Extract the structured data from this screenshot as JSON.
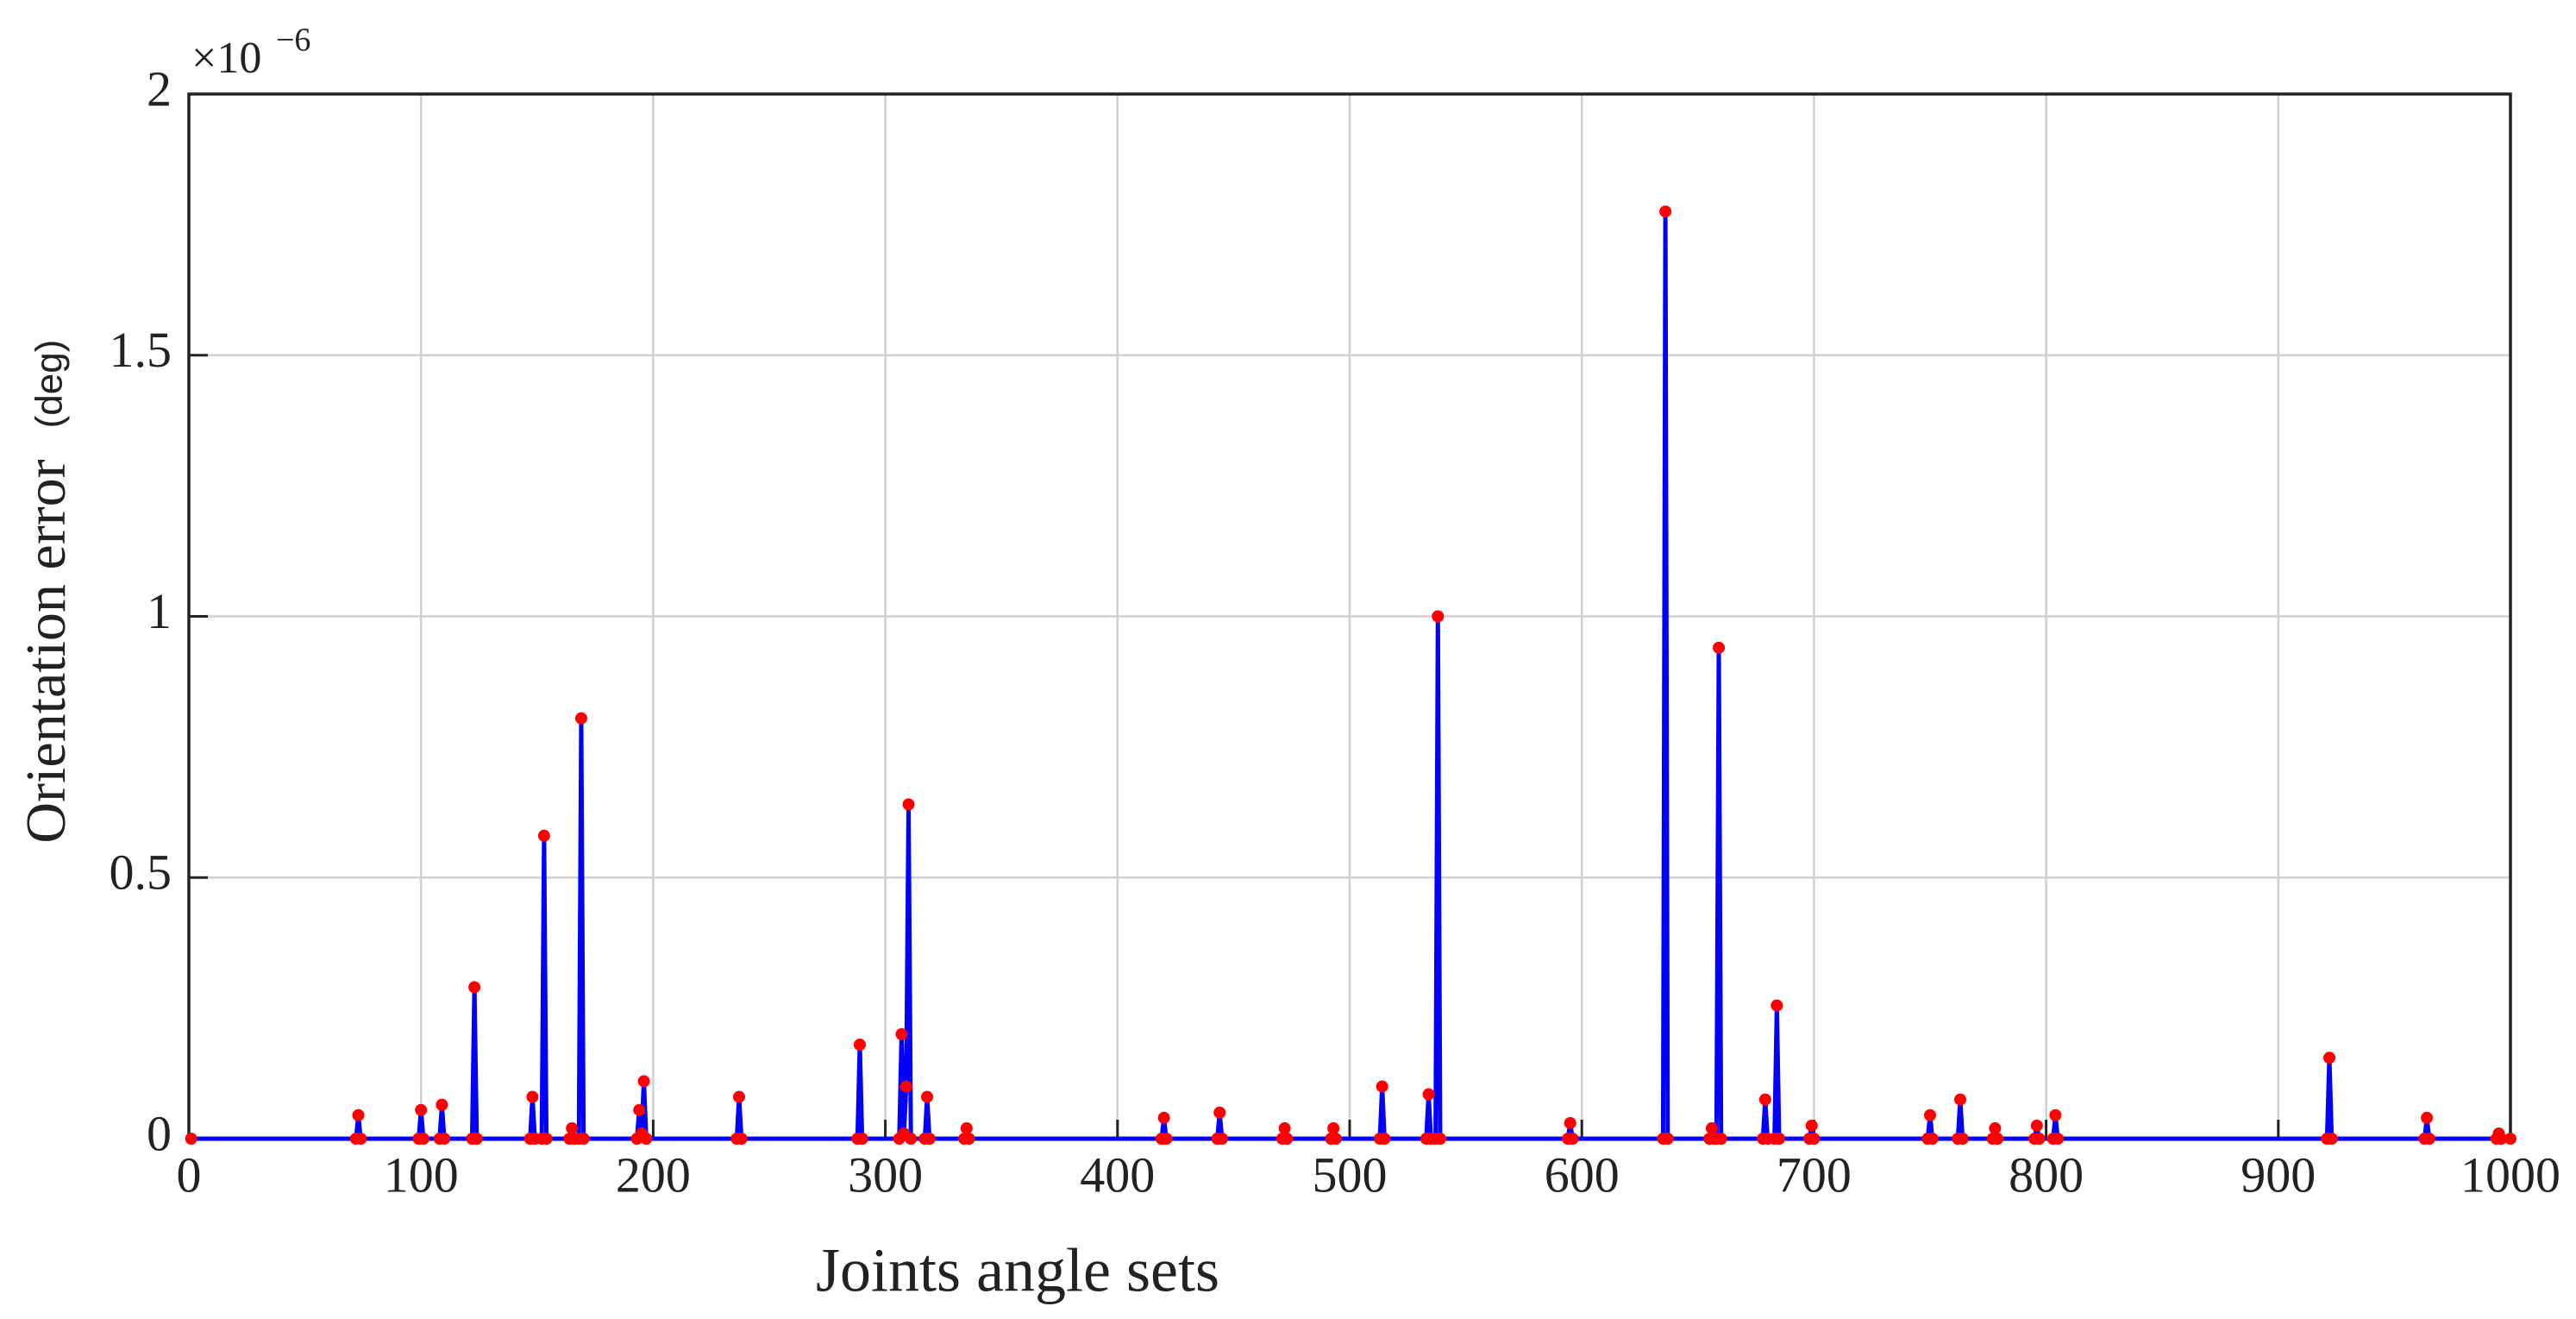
{
  "chart_data": {
    "type": "line",
    "xlabel": "Joints angle sets",
    "ylabel": "Orientation error",
    "ylabel_unit": "(deg)",
    "y_multiplier": {
      "base": "×10",
      "exponent": "−6"
    },
    "xlim": [
      0,
      1000
    ],
    "xticks": [
      0,
      100,
      200,
      300,
      400,
      500,
      600,
      700,
      800,
      900,
      1000
    ],
    "ylim": [
      0,
      2
    ],
    "yticks": [
      0,
      0.5,
      1,
      1.5,
      2
    ],
    "grid": true,
    "x": [
      1,
      72,
      73,
      74,
      99,
      100,
      101,
      108,
      109,
      110,
      122,
      123,
      124,
      147,
      148,
      149,
      152,
      153,
      154,
      164,
      165,
      166,
      168,
      169,
      170,
      193,
      194,
      195,
      196,
      197,
      236,
      237,
      238,
      288,
      289,
      290,
      306,
      307,
      308,
      309,
      310,
      311,
      317,
      318,
      319,
      334,
      335,
      336,
      419,
      420,
      421,
      443,
      444,
      445,
      471,
      472,
      473,
      492,
      493,
      494,
      513,
      514,
      515,
      533,
      534,
      535,
      537,
      538,
      539,
      594,
      595,
      596,
      635,
      636,
      637,
      655,
      656,
      657,
      658,
      659,
      660,
      678,
      679,
      680,
      683,
      684,
      685,
      698,
      699,
      700,
      749,
      750,
      751,
      762,
      763,
      764,
      777,
      778,
      779,
      795,
      796,
      797,
      803,
      804,
      805,
      921,
      922,
      923,
      963,
      964,
      965,
      994,
      995,
      996,
      1000
    ],
    "series": [
      {
        "color": "#0000ff",
        "marker_color": "#ff0000",
        "values": [
          0,
          0,
          0.045,
          0,
          0,
          0.055,
          0,
          0,
          0.065,
          0,
          0,
          0.29,
          0,
          0,
          0.08,
          0,
          0,
          0.58,
          0,
          0,
          0.02,
          0,
          0,
          0.805,
          0,
          0,
          0.055,
          0.01,
          0.11,
          0,
          0,
          0.08,
          0,
          0,
          0.18,
          0,
          0,
          0.2,
          0.01,
          0.1,
          0.64,
          0,
          0,
          0.08,
          0,
          0,
          0.02,
          0,
          0,
          0.04,
          0,
          0,
          0.05,
          0,
          0,
          0.02,
          0,
          0,
          0.02,
          0,
          0,
          0.1,
          0,
          0,
          0.085,
          0,
          0,
          1.0,
          0,
          0,
          0.03,
          0,
          0,
          1.775,
          0,
          0,
          0.02,
          0,
          0,
          0.94,
          0,
          0,
          0.075,
          0,
          0,
          0.255,
          0,
          0,
          0.025,
          0,
          0,
          0.045,
          0,
          0,
          0.075,
          0,
          0,
          0.02,
          0,
          0,
          0.025,
          0,
          0,
          0.045,
          0,
          0,
          0.155,
          0,
          0,
          0.04,
          0,
          0,
          0.01,
          0,
          0
        ]
      }
    ]
  }
}
